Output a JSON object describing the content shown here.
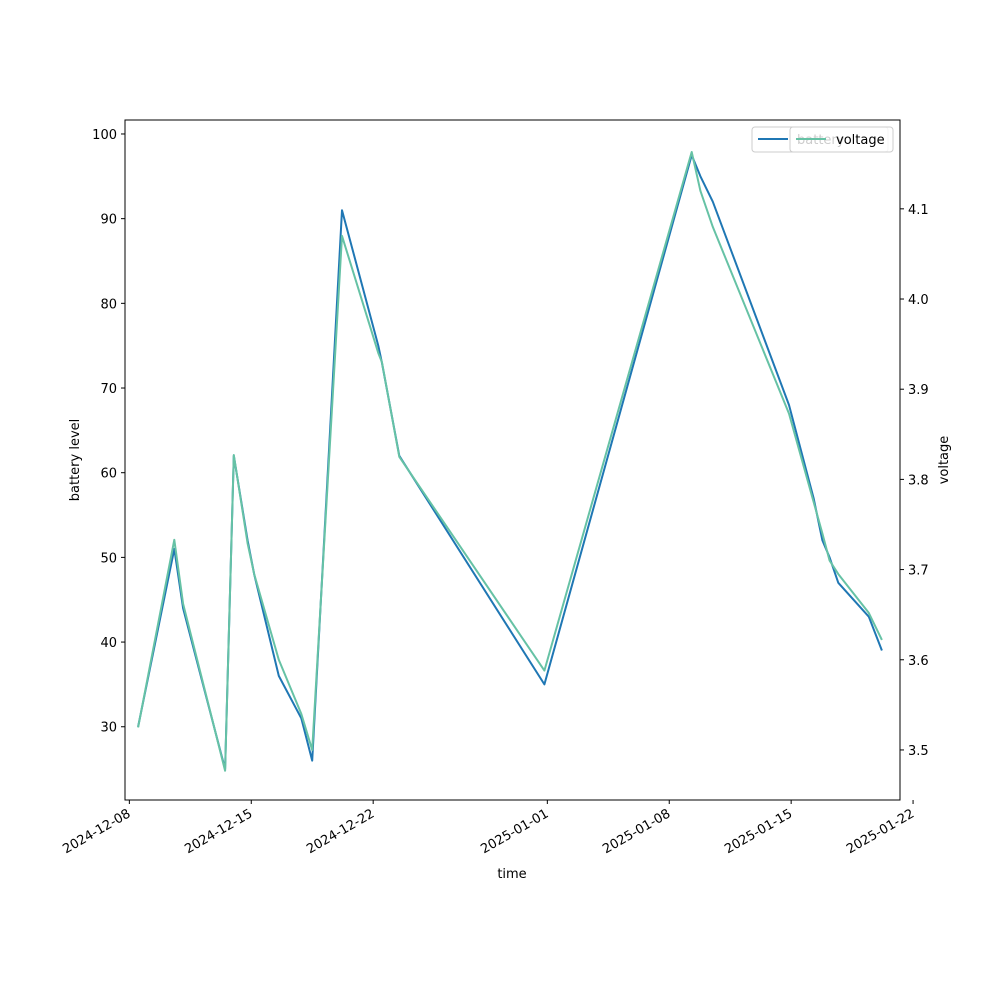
{
  "chart_data": {
    "type": "line",
    "title": "",
    "xlabel": "time",
    "ylabel_left": "battery level",
    "ylabel_right": "voltage",
    "ylim_left": [
      21.35,
      101.65
    ],
    "ylim_right": [
      3.4445,
      4.1985
    ],
    "xlim": [
      "2024-12-07T18:00",
      "2025-01-21T06:00"
    ],
    "x_ticks": [
      "2024-12-08",
      "2024-12-15",
      "2024-12-22",
      "2025-01-01",
      "2025-01-08",
      "2025-01-15",
      "2025-01-22"
    ],
    "y_ticks_left": [
      "30",
      "40",
      "50",
      "60",
      "70",
      "80",
      "90",
      "100"
    ],
    "y_ticks_right": [
      "3.5",
      "3.6",
      "3.7",
      "3.8",
      "3.9",
      "4.0",
      "4.1"
    ],
    "legend": {
      "placement": "top-right",
      "entries_overlapping": [
        "battery",
        "voltage"
      ]
    },
    "series": [
      {
        "name": "battery",
        "axis": "left",
        "color": "#1f77b4",
        "points": [
          [
            "2024-12-08T12:00",
            30
          ],
          [
            "2024-12-10T14:00",
            51
          ],
          [
            "2024-12-11T02:00",
            44
          ],
          [
            "2024-12-13T12:00",
            25
          ],
          [
            "2024-12-14T00:00",
            62
          ],
          [
            "2024-12-14T19:00",
            52
          ],
          [
            "2024-12-15T04:00",
            48
          ],
          [
            "2024-12-16T14:00",
            36
          ],
          [
            "2024-12-17T21:00",
            31
          ],
          [
            "2024-12-18T12:00",
            26
          ],
          [
            "2024-12-20T05:00",
            91
          ],
          [
            "2024-12-22T07:00",
            75
          ],
          [
            "2024-12-22T12:00",
            73
          ],
          [
            "2024-12-23T12:00",
            62
          ],
          [
            "2024-12-31T20:00",
            35
          ],
          [
            "2025-01-09T07:00",
            97.5
          ],
          [
            "2025-01-09T19:00",
            95
          ],
          [
            "2025-01-10T12:00",
            92
          ],
          [
            "2025-01-14T21:00",
            68
          ],
          [
            "2025-01-16T07:00",
            57
          ],
          [
            "2025-01-16T19:00",
            52
          ],
          [
            "2025-01-17T05:00",
            50
          ],
          [
            "2025-01-17T17:00",
            47
          ],
          [
            "2025-01-19T11:00",
            43
          ],
          [
            "2025-01-20T05:00",
            39
          ]
        ]
      },
      {
        "name": "voltage",
        "axis": "right",
        "color": "#66c2a5",
        "points": [
          [
            "2024-12-08T12:00",
            3.525
          ],
          [
            "2024-12-10T14:00",
            3.733
          ],
          [
            "2024-12-11T02:00",
            3.662
          ],
          [
            "2024-12-13T12:00",
            3.477
          ],
          [
            "2024-12-14T00:00",
            3.827
          ],
          [
            "2024-12-14T19:00",
            3.729
          ],
          [
            "2024-12-15T04:00",
            3.695
          ],
          [
            "2024-12-16T14:00",
            3.6
          ],
          [
            "2024-12-17T21:00",
            3.54
          ],
          [
            "2024-12-18T12:00",
            3.5
          ],
          [
            "2024-12-20T05:00",
            4.07
          ],
          [
            "2024-12-22T07:00",
            3.94
          ],
          [
            "2024-12-22T12:00",
            3.93
          ],
          [
            "2024-12-23T12:00",
            3.825
          ],
          [
            "2024-12-31T20:00",
            3.588
          ],
          [
            "2025-01-09T07:00",
            4.163
          ],
          [
            "2025-01-09T19:00",
            4.12
          ],
          [
            "2025-01-10T12:00",
            4.08
          ],
          [
            "2025-01-14T21:00",
            3.873
          ],
          [
            "2025-01-16T07:00",
            3.775
          ],
          [
            "2025-01-16T19:00",
            3.74
          ],
          [
            "2025-01-17T05:00",
            3.71
          ],
          [
            "2025-01-17T17:00",
            3.695
          ],
          [
            "2025-01-19T11:00",
            3.652
          ],
          [
            "2025-01-20T05:00",
            3.622
          ]
        ]
      }
    ]
  }
}
